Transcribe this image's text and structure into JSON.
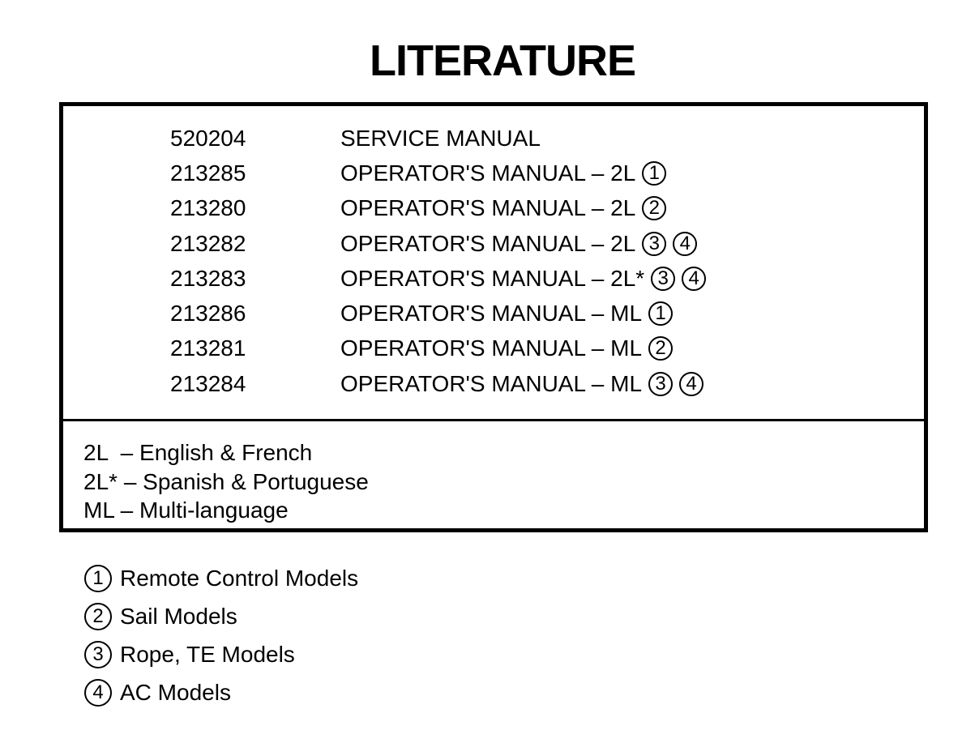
{
  "title": "LITERATURE",
  "rows": [
    {
      "part": "520204",
      "desc": "SERVICE MANUAL",
      "marks": []
    },
    {
      "part": "213285",
      "desc": "OPERATOR'S MANUAL – 2L",
      "marks": [
        "1"
      ]
    },
    {
      "part": "213280",
      "desc": "OPERATOR'S MANUAL – 2L",
      "marks": [
        "2"
      ]
    },
    {
      "part": "213282",
      "desc": "OPERATOR'S MANUAL – 2L",
      "marks": [
        "3",
        "4"
      ]
    },
    {
      "part": "213283",
      "desc": "OPERATOR'S MANUAL – 2L*",
      "marks": [
        "3",
        "4"
      ]
    },
    {
      "part": "213286",
      "desc": "OPERATOR'S MANUAL – ML",
      "marks": [
        "1"
      ]
    },
    {
      "part": "213281",
      "desc": "OPERATOR'S MANUAL – ML",
      "marks": [
        "2"
      ]
    },
    {
      "part": "213284",
      "desc": "OPERATOR'S MANUAL – ML",
      "marks": [
        "3",
        "4"
      ]
    }
  ],
  "languages": [
    "2L  – English & French",
    "2L* – Spanish & Portuguese",
    "ML – Multi-language"
  ],
  "notes": [
    {
      "mark": "1",
      "text": "Remote Control Models"
    },
    {
      "mark": "2",
      "text": "Sail Models"
    },
    {
      "mark": "3",
      "text": "Rope, TE Models"
    },
    {
      "mark": "4",
      "text": "AC Models"
    }
  ]
}
